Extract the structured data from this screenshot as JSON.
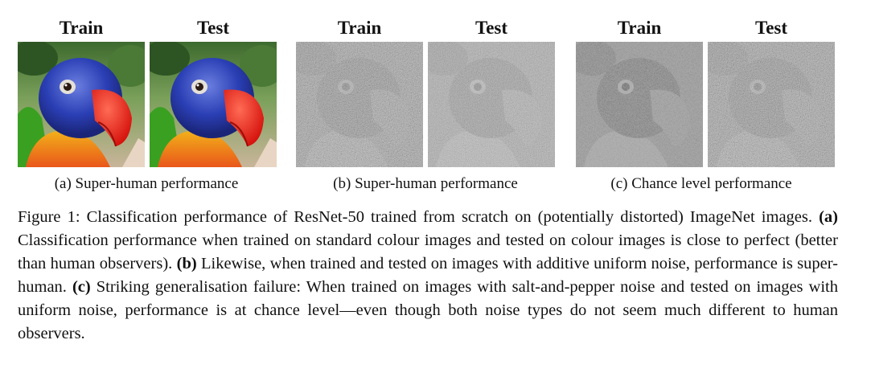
{
  "panels": [
    {
      "id": "a",
      "left_label": "Train",
      "right_label": "Test",
      "caption": "(a) Super-human performance",
      "image": "parrot-colour"
    },
    {
      "id": "b",
      "left_label": "Train",
      "right_label": "Test",
      "caption": "(b) Super-human performance",
      "image": "parrot-uniform-noise"
    },
    {
      "id": "c",
      "left_label": "Train",
      "right_label": "Test",
      "caption": "(c) Chance level performance",
      "image": "parrot-salt-pepper-vs-uniform-noise"
    }
  ],
  "figure_caption": {
    "prefix": "Figure 1: Classification performance of ResNet-50 trained from scratch on (potentially distorted) ImageNet images. ",
    "a_label": "(a)",
    "a_text": " Classification performance when trained on standard colour images and tested on colour images is close to perfect (better than human observers). ",
    "b_label": "(b)",
    "b_text": " Likewise, when trained and tested on images with additive uniform noise, performance is super-human. ",
    "c_label": "(c)",
    "c_text": " Striking generalisation failure: When trained on images with salt-and-pepper noise and tested on images with uniform noise, performance is at chance level—even though both noise types do not seem much different to human observers."
  }
}
